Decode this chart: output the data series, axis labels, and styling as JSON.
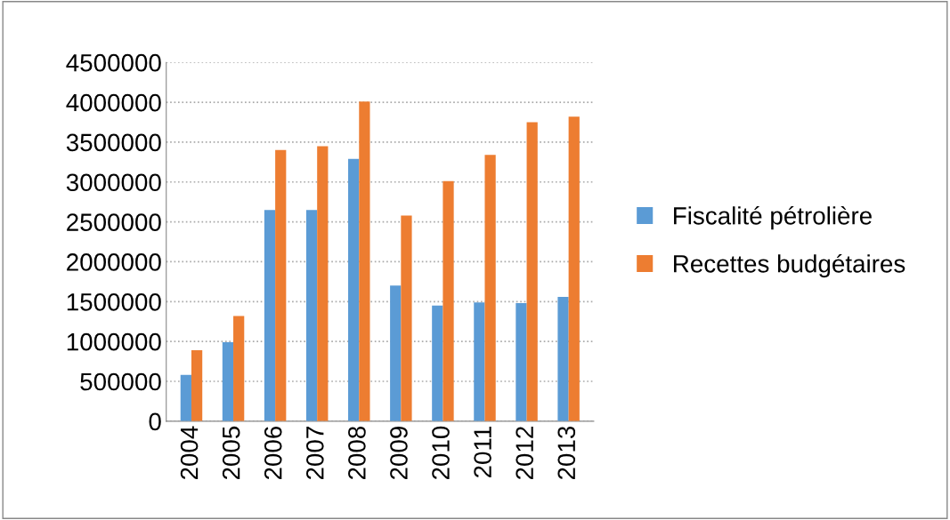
{
  "chart_data": {
    "type": "bar",
    "categories": [
      "2004",
      "2005",
      "2006",
      "2007",
      "2008",
      "2009",
      "2010",
      "2011",
      "2012",
      "2013"
    ],
    "series": [
      {
        "name": "Fiscalité pétrolière",
        "color": "#5b9bd5",
        "values": [
          580000,
          990000,
          2650000,
          2650000,
          3290000,
          1700000,
          1450000,
          1490000,
          1480000,
          1560000
        ]
      },
      {
        "name": "Recettes budgétaires",
        "color": "#ed7d31",
        "values": [
          890000,
          1320000,
          3400000,
          3450000,
          4010000,
          2580000,
          3010000,
          3340000,
          3750000,
          3820000
        ]
      }
    ],
    "ylim": [
      0,
      4500000
    ],
    "yticks": [
      0,
      500000,
      1000000,
      1500000,
      2000000,
      2500000,
      3000000,
      3500000,
      4000000,
      4500000
    ],
    "grid": "y",
    "legend": "right"
  }
}
